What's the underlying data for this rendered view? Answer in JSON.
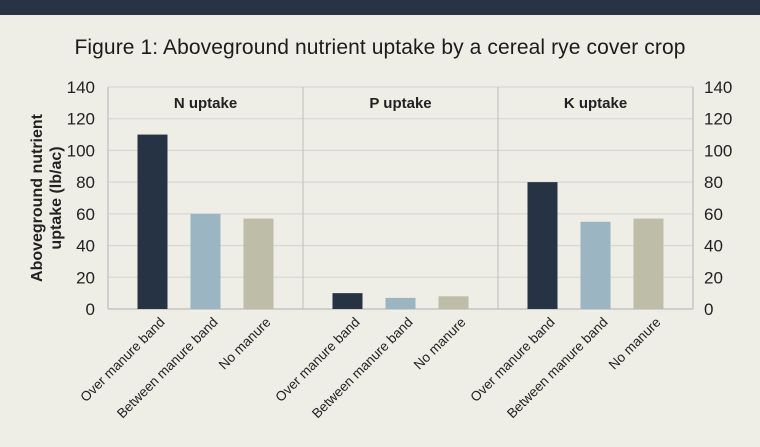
{
  "title": "Figure 1: Aboveground nutrient uptake by a cereal rye cover crop",
  "colors": {
    "background": "#eeede6",
    "top_bar": "#283445",
    "grid": "#d3d3d3",
    "axis": "#bdbdbd",
    "over_manure_band": "#263344",
    "between_manure_band": "#9bb5c3",
    "no_manure": "#bebea8"
  },
  "chart_data": {
    "type": "bar",
    "ylabel": "Aboveground nutrient uptake (lb/ac)",
    "ylim": [
      0,
      140
    ],
    "yticks": [
      0,
      20,
      40,
      60,
      80,
      100,
      120,
      140
    ],
    "grid": true,
    "categories": [
      "Over manure band",
      "Between manure band",
      "No manure"
    ],
    "panels": [
      {
        "name": "N uptake",
        "values": [
          110,
          60,
          57
        ]
      },
      {
        "name": "P uptake",
        "values": [
          10,
          7,
          8
        ]
      },
      {
        "name": "K uptake",
        "values": [
          80,
          55,
          57
        ]
      }
    ]
  }
}
